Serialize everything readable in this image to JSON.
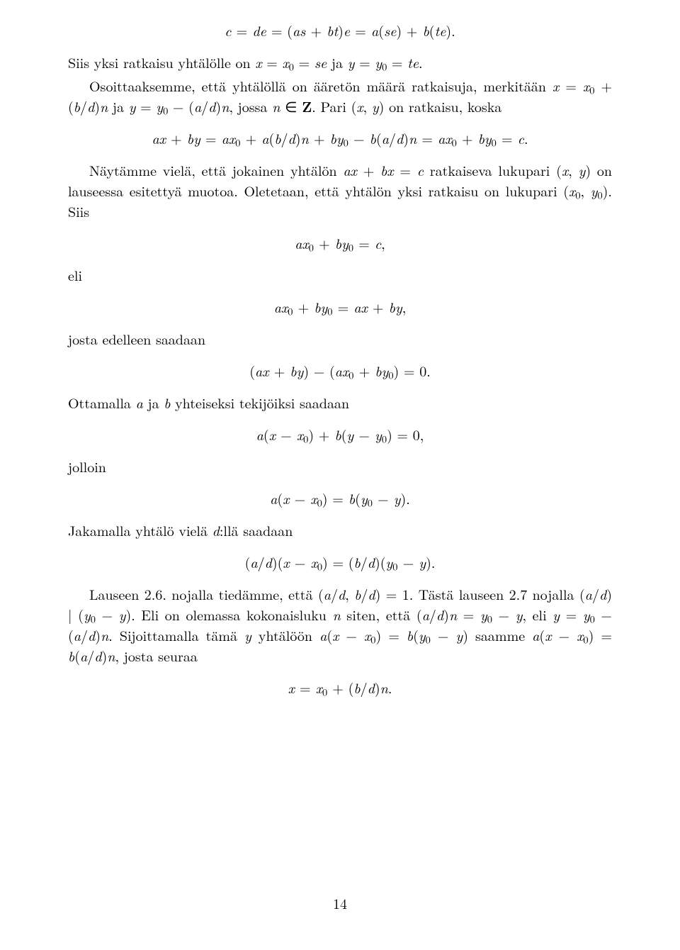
{
  "page": {
    "number": "14",
    "background_color": "#ffffff",
    "text_color": "#000000",
    "font_family_serif": "Computer Modern",
    "body_fontsize_pt": 12
  },
  "eq": {
    "e1": "c = de = (as + bt)e = a(se) + b(te).",
    "e2": "ax + by = ax₀ + a(b/d)n + by₀ − b(a/d)n = ax₀ + by₀ = c.",
    "e3": "ax₀ + by₀ = c,",
    "e4": "ax₀ + by₀ = ax + by,",
    "e5": "(ax + by) − (ax₀ + by₀) = 0.",
    "e6": "a(x − x₀) + b(y − y₀) = 0,",
    "e7": "a(x − x₀) = b(y₀ − y).",
    "e8": "(a/d)(x − x₀) = (b/d)(y₀ − y).",
    "e9": "x = x₀ + (b/d)n."
  },
  "text": {
    "p1a": "Siis yksi ratkaisu yhtälölle on ",
    "p1b": " ja ",
    "p2a": "Osoittaaksemme, että yhtälöllä on ääretön määrä ratkaisuja, merkitään ",
    "p2b": " ja ",
    "p2c": ", jossa ",
    "p2d": ". Pari ",
    "p2e": " on ratkaisu, koska",
    "p3a": "Näytämme vielä, että jokainen yhtälön ",
    "p3b": " ratkaiseva lukupari ",
    "p3c": " on lauseessa esitettyä muotoa. Oletetaan, että yhtälön yksi ratkaisu on lukupari ",
    "p3d": ". Siis",
    "eli": "eli",
    "p4": "josta edelleen saadaan",
    "p5a": "Ottamalla ",
    "p5b": " ja ",
    "p5c": " yhteiseksi tekijöiksi saadaan",
    "jolloin": "jolloin",
    "p6a": "Jakamalla yhtälö vielä ",
    "p6b": ":llä saadaan",
    "p7a": "Lauseen 2.6. nojalla tiedämme, että ",
    "p7b": ". Tästä lauseen 2.7 nojalla ",
    "p7c": ". Eli on olemassa kokonaisluku ",
    "p7d": " siten, että ",
    "p7e": ", eli ",
    "p7f": ". Sijoittamalla tämä ",
    "p7g": " yhtälöön ",
    "p7h": " saamme ",
    "p7i": ", josta seuraa"
  },
  "math": {
    "x_eq_x0_se": "x = x₀ = se",
    "y_eq_y0_te": "y = y₀ = te.",
    "x_eq_x0_bdn": "x = x₀ + (b/d)n",
    "y_eq_y0_adn": "y = y₀ − (a/d)n",
    "n_in_Z": "n ∈ Z",
    "pair_xy": "(x, y)",
    "ax_bx_c": "ax + bx = c",
    "pair_x0y0": "(x₀, y₀)",
    "a": "a",
    "b": "b",
    "d": "d",
    "n": "n",
    "y": "y",
    "gcd_adbd_1": "(a/d, b/d) = 1",
    "ad_div_y0y": "(a/d) | (y₀ − y)",
    "adn_eq_y0y": "(a/d)n = y₀ − y",
    "y_eq_y0_adn2": "y = y₀ − (a/d)n",
    "axx0_eq_by0y": "a(x − x₀) = b(y₀ − y)",
    "axx0_eq_badn": "a(x − x₀) = b(a/d)n"
  }
}
